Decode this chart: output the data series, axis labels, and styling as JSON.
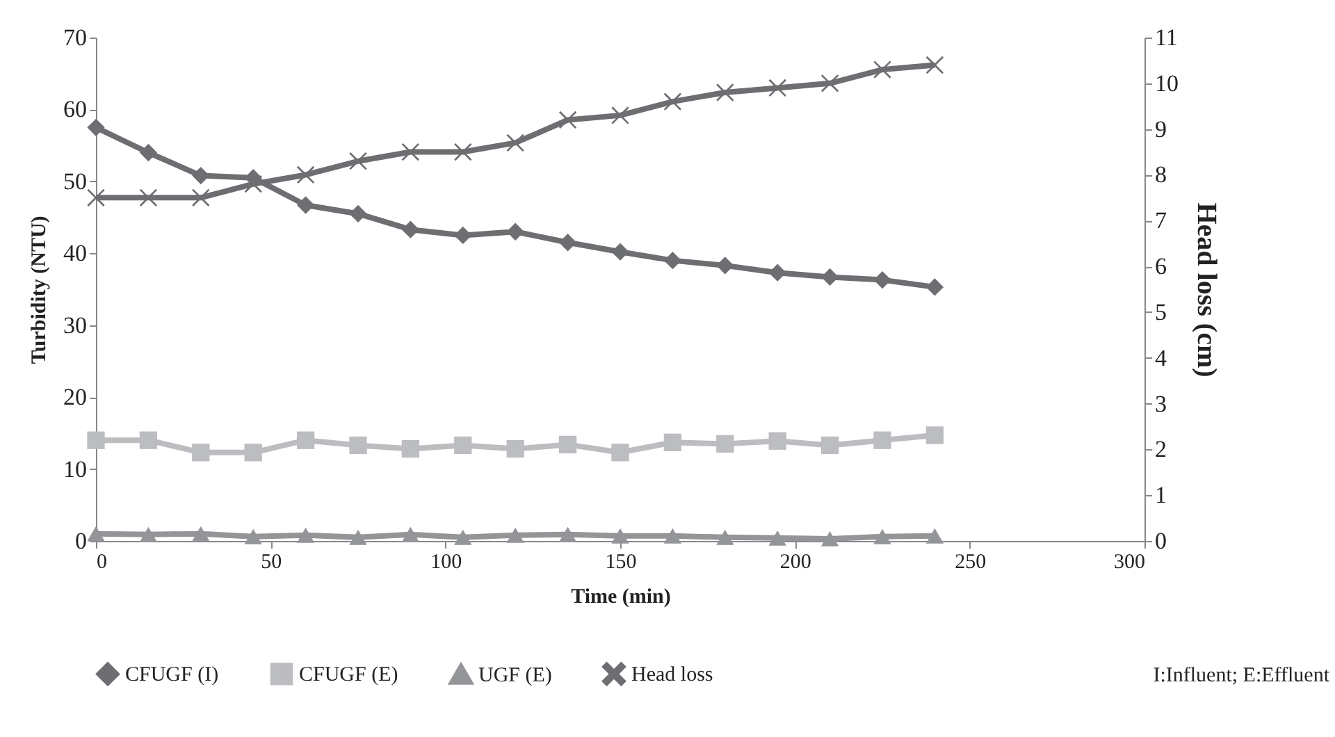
{
  "chart_data": {
    "type": "line",
    "xlabel": "Time (min)",
    "ylabel": "Turbidity (NTU)",
    "y2label": "Head loss (cm)",
    "x": [
      0,
      15,
      30,
      45,
      60,
      75,
      90,
      105,
      120,
      135,
      150,
      165,
      180,
      195,
      210,
      225,
      240
    ],
    "series": [
      {
        "name": "CFUGF (I)",
        "color": "#6d6e71",
        "marker": "diamond",
        "values": [
          57.5,
          54,
          50.8,
          50.5,
          46.7,
          45.5,
          43.3,
          42.5,
          43,
          41.5,
          40.2,
          39,
          38.3,
          37.3,
          36.7,
          36.3,
          35.3
        ]
      },
      {
        "name": "CFUGF (E)",
        "color": "#bcbdc0",
        "marker": "square",
        "values": [
          14,
          14,
          12.3,
          12.3,
          14,
          13.3,
          12.8,
          13.3,
          12.8,
          13.4,
          12.3,
          13.7,
          13.5,
          13.9,
          13.3,
          14,
          14.7
        ]
      },
      {
        "name": "UGF (E)",
        "color": "#939598",
        "marker": "triangle",
        "values": [
          1,
          0.9,
          1,
          0.6,
          0.8,
          0.5,
          0.9,
          0.5,
          0.8,
          0.9,
          0.7,
          0.7,
          0.5,
          0.4,
          0.3,
          0.6,
          0.7
        ]
      },
      {
        "name": "Head loss",
        "color": "#6d6e71",
        "marker": "cross",
        "axis": "y2",
        "values": [
          7.5,
          7.5,
          7.5,
          7.8,
          8.0,
          8.3,
          8.5,
          8.5,
          8.7,
          9.2,
          9.3,
          9.6,
          9.8,
          9.9,
          10.0,
          10.3,
          10.4
        ]
      }
    ],
    "xlim": [
      0,
      300
    ],
    "xticks": [
      0,
      50,
      100,
      150,
      200,
      250,
      300
    ],
    "ylim": [
      0,
      70
    ],
    "yticks": [
      0,
      10,
      20,
      30,
      40,
      50,
      60,
      70
    ],
    "y2lim": [
      0,
      11
    ],
    "y2ticks": [
      0,
      1,
      2,
      3,
      4,
      5,
      6,
      7,
      8,
      9,
      10,
      11
    ],
    "grid": false,
    "legend": "bottom",
    "line_style": "solid",
    "annotations": [
      "I:Influent; E:Effluent"
    ]
  }
}
